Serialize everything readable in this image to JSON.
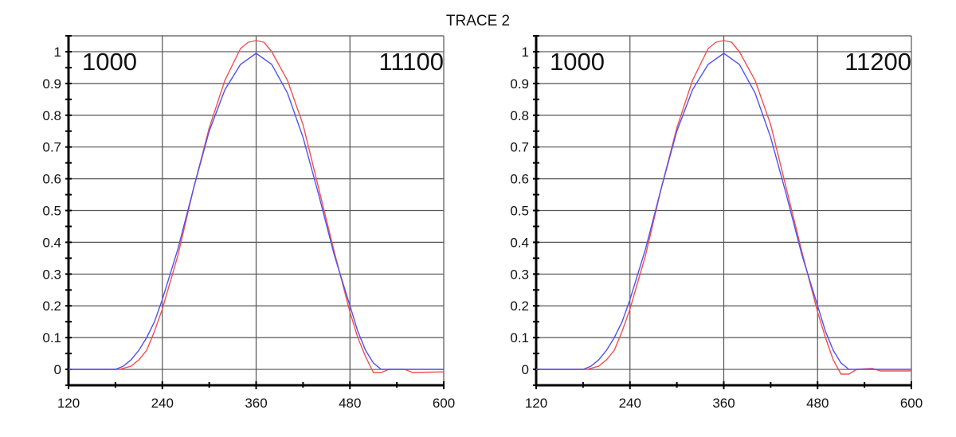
{
  "chart_data": {
    "title": "TRACE 2",
    "charts": [
      {
        "type": "line",
        "left_label": "1000",
        "right_label": "11100",
        "xlim": [
          120,
          600
        ],
        "ylim": [
          -0.05,
          1.05
        ],
        "xticks": [
          120,
          240,
          360,
          480,
          600
        ],
        "yticks": [
          0,
          0.1,
          0.2,
          0.3,
          0.4,
          0.5,
          0.6,
          0.7,
          0.8,
          0.9,
          1
        ],
        "ytick_labels": [
          "0",
          "0.1",
          "0.2",
          "0.3",
          "0.4",
          "0.5",
          "0.6",
          "0.7",
          "0.8",
          "0.9",
          "1"
        ],
        "xtick_labels": [
          "120",
          "240",
          "360",
          "480",
          "600"
        ],
        "grid": true,
        "series": [
          {
            "name": "red",
            "color": "#f05050",
            "x": [
              120,
              185,
              200,
              210,
              220,
              230,
              240,
              260,
              280,
              300,
              320,
              340,
              350,
              360,
              370,
              380,
              400,
              420,
              440,
              460,
              480,
              490,
              500,
              510,
              520,
              530,
              550,
              560,
              600
            ],
            "y": [
              0,
              0,
              0.01,
              0.03,
              0.06,
              0.12,
              0.19,
              0.36,
              0.57,
              0.76,
              0.91,
              1.01,
              1.03,
              1.035,
              1.03,
              1.0,
              0.91,
              0.77,
              0.57,
              0.37,
              0.18,
              0.1,
              0.04,
              -0.01,
              -0.01,
              0,
              0,
              -0.01,
              -0.008
            ]
          },
          {
            "name": "blue",
            "color": "#5050f0",
            "x": [
              120,
              180,
              190,
              200,
              210,
              220,
              230,
              240,
              260,
              280,
              300,
              320,
              340,
              360,
              380,
              400,
              420,
              440,
              460,
              480,
              490,
              500,
              510,
              520,
              600
            ],
            "y": [
              0,
              0,
              0.01,
              0.03,
              0.06,
              0.1,
              0.15,
              0.22,
              0.38,
              0.57,
              0.75,
              0.88,
              0.96,
              0.995,
              0.96,
              0.87,
              0.73,
              0.55,
              0.36,
              0.2,
              0.12,
              0.06,
              0.02,
              0,
              0
            ]
          }
        ]
      },
      {
        "type": "line",
        "left_label": "1000",
        "right_label": "11200",
        "xlim": [
          120,
          600
        ],
        "ylim": [
          -0.05,
          1.05
        ],
        "xticks": [
          120,
          240,
          360,
          480,
          600
        ],
        "yticks": [
          0,
          0.1,
          0.2,
          0.3,
          0.4,
          0.5,
          0.6,
          0.7,
          0.8,
          0.9,
          1
        ],
        "ytick_labels": [
          "0",
          "0.1",
          "0.2",
          "0.3",
          "0.4",
          "0.5",
          "0.6",
          "0.7",
          "0.8",
          "0.9",
          "1"
        ],
        "xtick_labels": [
          "120",
          "240",
          "360",
          "480",
          "600"
        ],
        "grid": true,
        "series": [
          {
            "name": "red",
            "color": "#f05050",
            "x": [
              120,
              185,
              200,
              210,
              220,
              230,
              240,
              260,
              280,
              300,
              320,
              340,
              350,
              360,
              370,
              380,
              400,
              420,
              440,
              460,
              480,
              490,
              500,
              510,
              520,
              530,
              550,
              560,
              600
            ],
            "y": [
              0,
              0,
              0.01,
              0.03,
              0.06,
              0.12,
              0.19,
              0.36,
              0.57,
              0.76,
              0.91,
              1.01,
              1.03,
              1.035,
              1.03,
              1.0,
              0.91,
              0.77,
              0.57,
              0.37,
              0.18,
              0.1,
              0.03,
              -0.015,
              -0.015,
              0,
              0.003,
              -0.005,
              -0.005
            ]
          },
          {
            "name": "blue",
            "color": "#5050f0",
            "x": [
              120,
              180,
              190,
              200,
              210,
              220,
              230,
              240,
              260,
              280,
              300,
              320,
              340,
              360,
              380,
              400,
              420,
              440,
              460,
              480,
              490,
              500,
              510,
              520,
              600
            ],
            "y": [
              0,
              0,
              0.01,
              0.03,
              0.06,
              0.1,
              0.15,
              0.22,
              0.38,
              0.57,
              0.75,
              0.88,
              0.96,
              0.995,
              0.96,
              0.87,
              0.73,
              0.55,
              0.36,
              0.2,
              0.12,
              0.06,
              0.02,
              0,
              0
            ]
          }
        ]
      }
    ]
  }
}
